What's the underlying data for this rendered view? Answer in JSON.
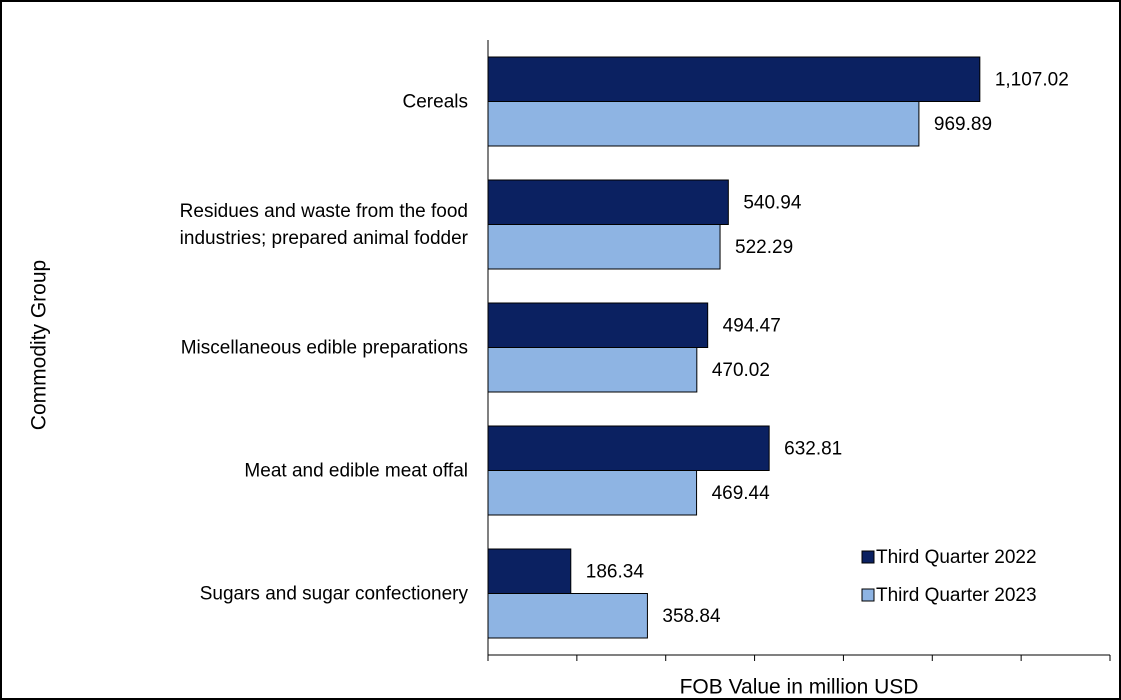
{
  "chart_data": {
    "type": "hbar",
    "categories": [
      "Cereals",
      "Residues and waste from the food\nindustries; prepared animal fodder",
      "Miscellaneous edible preparations",
      "Meat and edible meat offal",
      "Sugars and sugar confectionery"
    ],
    "series": [
      {
        "name": "Third Quarter 2022",
        "color": "#0b2161",
        "values": [
          1107.02,
          540.94,
          494.47,
          632.81,
          186.34
        ],
        "value_labels": [
          "1,107.02",
          "540.94",
          "494.47",
          "632.81",
          "186.34"
        ]
      },
      {
        "name": "Third Quarter 2023",
        "color": "#8eb4e3",
        "values": [
          969.89,
          522.29,
          470.02,
          469.44,
          358.84
        ],
        "value_labels": [
          "969.89",
          "522.29",
          "470.02",
          "469.44",
          "358.84"
        ]
      }
    ],
    "xlabel": "FOB Value in million USD",
    "ylabel": "Commodity Group",
    "xlim": [
      0,
      1400
    ],
    "xticks": [
      0,
      200,
      400,
      600,
      800,
      1000,
      1200,
      1400
    ],
    "legend": "lower right"
  }
}
